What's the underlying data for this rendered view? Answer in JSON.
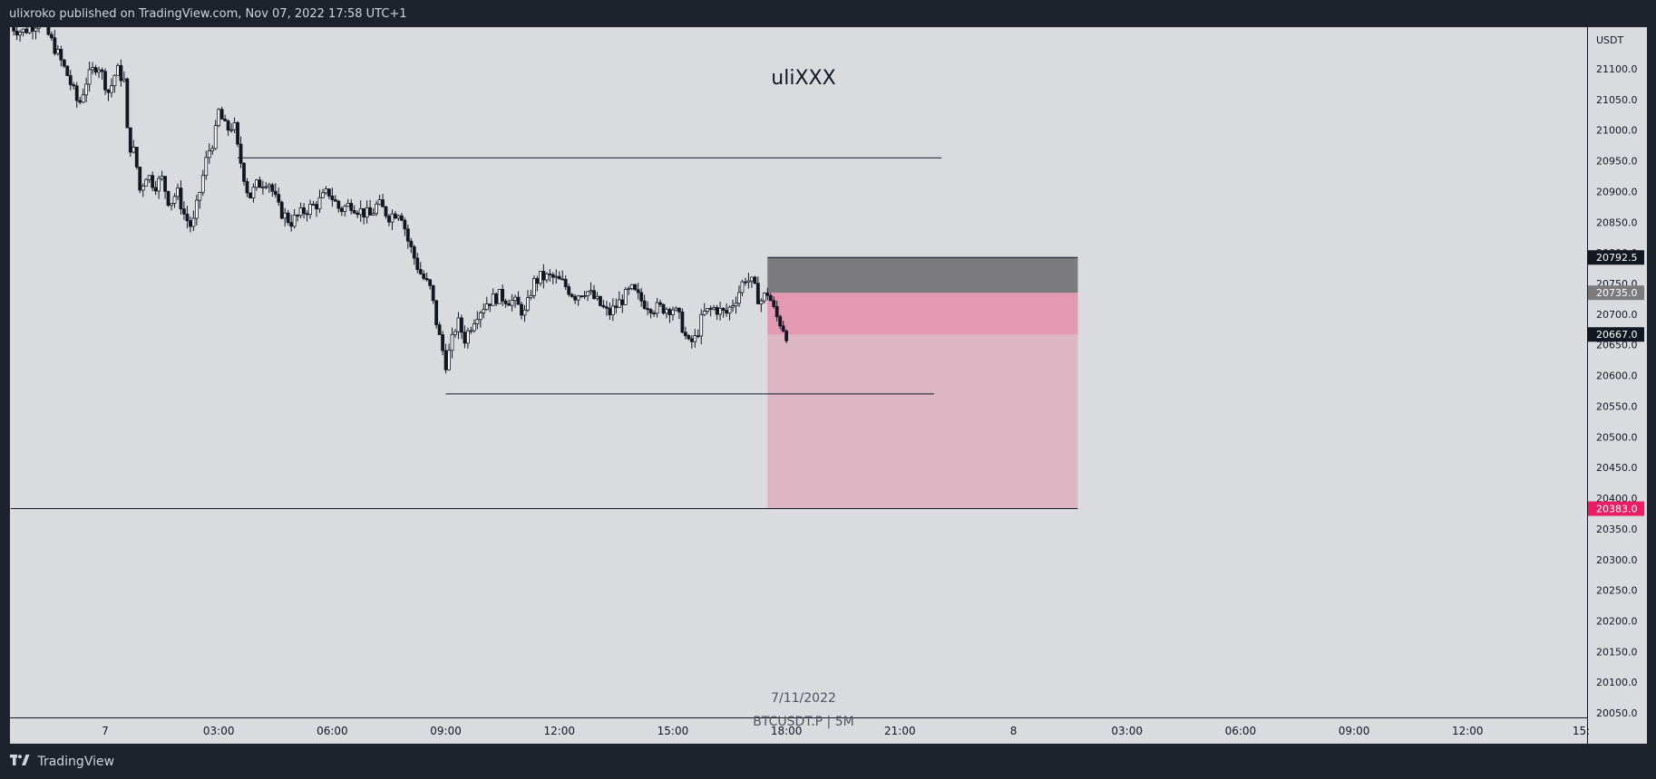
{
  "header": {
    "publisher_text": "ulixroko published on TradingView.com, Nov 07, 2022 17:58 UTC+1"
  },
  "footer": {
    "brand": "TradingView",
    "logo_icon": "tradingview-logo-icon"
  },
  "colors": {
    "background": "#dadbde",
    "frame": "#1e222d",
    "candle": "#131722",
    "stop_zone": "#7b7b7e",
    "entry_zone": "#e299b1",
    "target_zone": "#ddb6c4",
    "target_label": "#e91e63"
  },
  "chart_data": {
    "type": "candlestick",
    "title": "uliXXX",
    "subtitle_date": "7/11/2022",
    "symbol": "BTCUSDT.P | 5M",
    "y_unit": "USDT",
    "ylim": [
      20030,
      21150
    ],
    "grid": false,
    "y_ticks": [
      "21100.0",
      "21050.0",
      "21000.0",
      "20950.0",
      "20900.0",
      "20850.0",
      "20800.0",
      "20750.0",
      "20700.0",
      "20650.0",
      "20600.0",
      "20550.0",
      "20500.0",
      "20450.0",
      "20400.0",
      "20350.0",
      "20300.0",
      "20250.0",
      "20200.0",
      "20150.0",
      "20100.0",
      "20050.0"
    ],
    "x_ticks": [
      "7",
      "03:00",
      "06:00",
      "09:00",
      "12:00",
      "15:00",
      "18:00",
      "21:00",
      "8",
      "03:00",
      "06:00",
      "09:00",
      "12:00",
      "15:"
    ],
    "price_tags": [
      {
        "label": "20792.5",
        "value": 20792.5,
        "color": "#131722"
      },
      {
        "label": "20735.0",
        "value": 20735.0,
        "color": "#7b7b7e"
      },
      {
        "label": "20667.0",
        "value": 20667.0,
        "color": "#131722"
      },
      {
        "label": "20383.0",
        "value": 20383.0,
        "color": "#e91e63"
      }
    ],
    "horizontal_lines": [
      {
        "price": 20955,
        "from_hour": 3.5,
        "to_hour": 22.1
      },
      {
        "price": 20570,
        "from_hour": 9.0,
        "to_hour": 21.9
      },
      {
        "price": 20383,
        "from_hour": -2.5,
        "to_hour": 25.7
      }
    ],
    "position": {
      "side": "short",
      "start_hour": 17.5,
      "end_hour": 25.7,
      "stop": 20792.5,
      "entry": 20735.0,
      "current": 20667.0,
      "target": 20383.0
    },
    "price_path": [
      [
        -2.5,
        21170
      ],
      [
        -2.2,
        21160
      ],
      [
        -1.7,
        21180
      ],
      [
        -1.3,
        21130
      ],
      [
        -1.0,
        21090
      ],
      [
        -0.7,
        21040
      ],
      [
        -0.5,
        21080
      ],
      [
        -0.2,
        21110
      ],
      [
        0.1,
        21060
      ],
      [
        0.3,
        21100
      ],
      [
        0.5,
        21080
      ],
      [
        0.6,
        20980
      ],
      [
        0.8,
        20960
      ],
      [
        0.9,
        20900
      ],
      [
        1.1,
        20930
      ],
      [
        1.3,
        20910
      ],
      [
        1.5,
        20920
      ],
      [
        1.7,
        20880
      ],
      [
        1.9,
        20900
      ],
      [
        2.1,
        20860
      ],
      [
        2.3,
        20840
      ],
      [
        2.5,
        20900
      ],
      [
        2.7,
        20960
      ],
      [
        2.9,
        20990
      ],
      [
        3.0,
        21030
      ],
      [
        3.2,
        21000
      ],
      [
        3.4,
        21010
      ],
      [
        3.5,
        20970
      ],
      [
        3.8,
        20890
      ],
      [
        4.0,
        20910
      ],
      [
        4.3,
        20920
      ],
      [
        4.6,
        20870
      ],
      [
        4.9,
        20850
      ],
      [
        5.3,
        20870
      ],
      [
        5.6,
        20880
      ],
      [
        5.9,
        20900
      ],
      [
        6.2,
        20870
      ],
      [
        6.5,
        20880
      ],
      [
        6.7,
        20870
      ],
      [
        7.0,
        20860
      ],
      [
        7.2,
        20880
      ],
      [
        7.5,
        20860
      ],
      [
        7.8,
        20870
      ],
      [
        8.0,
        20820
      ],
      [
        8.3,
        20770
      ],
      [
        8.6,
        20740
      ],
      [
        8.8,
        20670
      ],
      [
        9.0,
        20620
      ],
      [
        9.1,
        20640
      ],
      [
        9.3,
        20690
      ],
      [
        9.5,
        20660
      ],
      [
        9.8,
        20700
      ],
      [
        10.1,
        20720
      ],
      [
        10.4,
        20730
      ],
      [
        10.8,
        20720
      ],
      [
        11.1,
        20700
      ],
      [
        11.3,
        20750
      ],
      [
        11.5,
        20760
      ],
      [
        11.8,
        20760
      ],
      [
        12.1,
        20750
      ],
      [
        12.4,
        20730
      ],
      [
        12.7,
        20740
      ],
      [
        13.0,
        20720
      ],
      [
        13.3,
        20700
      ],
      [
        13.6,
        20720
      ],
      [
        13.9,
        20740
      ],
      [
        14.2,
        20720
      ],
      [
        14.5,
        20710
      ],
      [
        14.8,
        20710
      ],
      [
        15.0,
        20710
      ],
      [
        15.2,
        20690
      ],
      [
        15.4,
        20650
      ],
      [
        15.6,
        20660
      ],
      [
        15.8,
        20700
      ],
      [
        16.1,
        20710
      ],
      [
        16.4,
        20700
      ],
      [
        16.7,
        20730
      ],
      [
        16.9,
        20760
      ],
      [
        17.1,
        20750
      ],
      [
        17.3,
        20720
      ],
      [
        17.5,
        20735
      ],
      [
        17.6,
        20720
      ],
      [
        17.7,
        20700
      ],
      [
        17.9,
        20680
      ],
      [
        18.0,
        20667
      ]
    ]
  }
}
